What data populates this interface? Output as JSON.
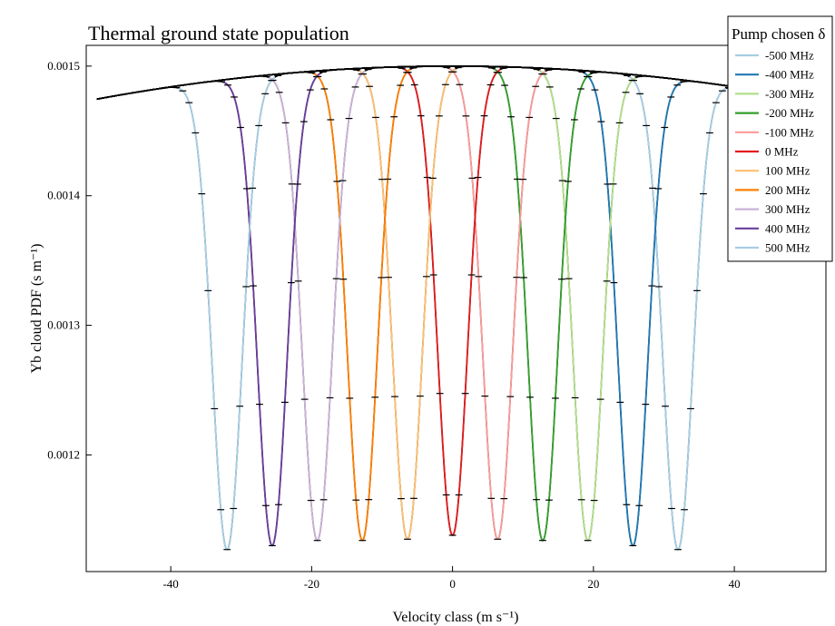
{
  "chart_data": {
    "type": "line",
    "title": "Thermal ground state population",
    "xlabel": "Velocity class (m s⁻¹)",
    "ylabel": "Yb cloud PDF (s m⁻¹)",
    "xlim": [
      -52,
      53
    ],
    "ylim": [
      0.00111,
      0.001516
    ],
    "xticks": [
      -40,
      -20,
      0,
      20,
      40
    ],
    "xtick_labels": [
      "-40",
      "-20",
      "0",
      "20",
      "40"
    ],
    "yticks": [
      0.0012,
      0.0013,
      0.0014,
      0.0015
    ],
    "ytick_labels": [
      "0.0012",
      "0.0013",
      "0.0014",
      "0.0015"
    ],
    "grid": false,
    "legend": {
      "title": "Pump chosen δ",
      "placement": "top-right"
    },
    "thermal_envelope": {
      "peak": 0.0015,
      "center": 0,
      "value_at_x_minus_50": 0.001475
    },
    "hole_width": 3.0,
    "error_bar_halfwidth": 0.5,
    "error_bar_spacing": 0.9,
    "series": [
      {
        "name": "-500 MHz",
        "color": "#a6cee3",
        "hole_center": 32.0,
        "hole_min": 0.001127
      },
      {
        "name": "-400 MHz",
        "color": "#1f78b4",
        "hole_center": 25.6,
        "hole_min": 0.00113
      },
      {
        "name": "-300 MHz",
        "color": "#b2df8a",
        "hole_center": 19.2,
        "hole_min": 0.001134
      },
      {
        "name": "-200 MHz",
        "color": "#33a02c",
        "hole_center": 12.8,
        "hole_min": 0.001134
      },
      {
        "name": "-100 MHz",
        "color": "#fb9a99",
        "hole_center": 6.4,
        "hole_min": 0.001135
      },
      {
        "name": "0 MHz",
        "color": "#e31a1c",
        "hole_center": 0.0,
        "hole_min": 0.001138
      },
      {
        "name": "100 MHz",
        "color": "#fdbf6f",
        "hole_center": -6.4,
        "hole_min": 0.001135
      },
      {
        "name": "200 MHz",
        "color": "#ff7f00",
        "hole_center": -12.8,
        "hole_min": 0.001134
      },
      {
        "name": "300 MHz",
        "color": "#cab2d6",
        "hole_center": -19.2,
        "hole_min": 0.001134
      },
      {
        "name": "400 MHz",
        "color": "#6a3d9a",
        "hole_center": -25.6,
        "hole_min": 0.00113
      },
      {
        "name": "500 MHz",
        "color": "#a6cee3",
        "hole_center": -32.0,
        "hole_min": 0.001127
      }
    ]
  }
}
